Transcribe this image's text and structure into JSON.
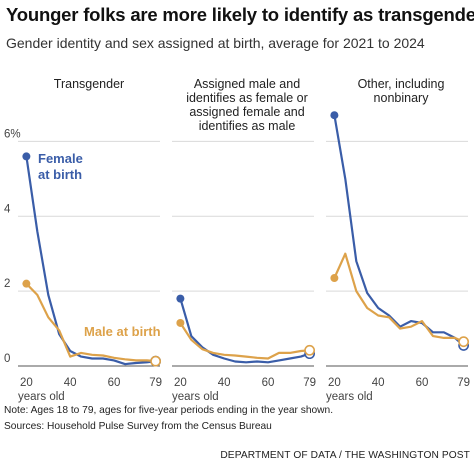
{
  "header": {
    "title": "Younger folks are more likely to identify as transgender",
    "subtitle": "Gender identity and sex assigned at birth, average for 2021 to 2024"
  },
  "footer": {
    "note": "Note: Ages 18 to 79, ages for five-year periods ending in the year shown.",
    "sources": "Sources: Household Pulse Survey from the Census Bureau",
    "credit": "DEPARTMENT OF DATA / THE WASHINGTON POST"
  },
  "chart_data": {
    "type": "line",
    "y_ticks": [
      {
        "value": 0,
        "label": "0"
      },
      {
        "value": 2,
        "label": "2"
      },
      {
        "value": 4,
        "label": "4"
      },
      {
        "value": 6,
        "label": "6%"
      }
    ],
    "ylim": [
      0,
      7
    ],
    "grid": true,
    "x_ticks": [
      {
        "value": 20,
        "label": "20"
      },
      {
        "value": 40,
        "label": "40"
      },
      {
        "value": 60,
        "label": "60"
      },
      {
        "value": 79,
        "label": "79"
      }
    ],
    "x_unit_label": "years old",
    "xlim": [
      18,
      81
    ],
    "colors": {
      "female": "#3a5da8",
      "male": "#dda24a",
      "grid": "#d9d9d9",
      "axis": "#555555"
    },
    "panels": [
      {
        "title": "Transgender",
        "series": [
          {
            "name": "Female at birth",
            "color": "#3a5da8",
            "x": [
              20,
              25,
              30,
              35,
              40,
              45,
              50,
              55,
              60,
              65,
              70,
              75,
              79
            ],
            "y": [
              5.6,
              3.6,
              1.9,
              0.85,
              0.4,
              0.25,
              0.2,
              0.2,
              0.15,
              0.05,
              0.08,
              0.1,
              0.13
            ]
          },
          {
            "name": "Male at birth",
            "color": "#dda24a",
            "x": [
              20,
              25,
              30,
              35,
              40,
              45,
              50,
              55,
              60,
              65,
              70,
              75,
              79
            ],
            "y": [
              2.2,
              1.9,
              1.3,
              0.95,
              0.25,
              0.35,
              0.3,
              0.28,
              0.22,
              0.18,
              0.15,
              0.15,
              0.13
            ]
          }
        ]
      },
      {
        "title": "Assigned male and identifies as female or assigned female and identifies as male",
        "series": [
          {
            "name": "",
            "color": "#3a5da8",
            "x": [
              20,
              25,
              30,
              35,
              40,
              45,
              50,
              55,
              60,
              65,
              70,
              75,
              79
            ],
            "y": [
              1.8,
              0.8,
              0.5,
              0.3,
              0.2,
              0.12,
              0.1,
              0.12,
              0.1,
              0.15,
              0.2,
              0.25,
              0.33
            ]
          },
          {
            "name": "",
            "color": "#dda24a",
            "x": [
              20,
              25,
              30,
              35,
              40,
              45,
              50,
              55,
              60,
              65,
              70,
              75,
              79
            ],
            "y": [
              1.15,
              0.7,
              0.45,
              0.35,
              0.3,
              0.28,
              0.25,
              0.22,
              0.2,
              0.35,
              0.35,
              0.4,
              0.42
            ]
          }
        ]
      },
      {
        "title": "Other, including nonbinary",
        "series": [
          {
            "name": "",
            "color": "#3a5da8",
            "x": [
              20,
              25,
              30,
              35,
              40,
              45,
              50,
              55,
              60,
              65,
              70,
              75,
              79
            ],
            "y": [
              6.7,
              5.0,
              2.8,
              1.95,
              1.55,
              1.35,
              1.05,
              1.2,
              1.15,
              0.9,
              0.9,
              0.75,
              0.55
            ]
          },
          {
            "name": "",
            "color": "#dda24a",
            "x": [
              20,
              25,
              30,
              35,
              40,
              45,
              50,
              55,
              60,
              65,
              70,
              75,
              79
            ],
            "y": [
              2.35,
              3.0,
              2.0,
              1.55,
              1.35,
              1.3,
              1.0,
              1.05,
              1.2,
              0.8,
              0.75,
              0.75,
              0.65
            ]
          }
        ]
      }
    ]
  }
}
